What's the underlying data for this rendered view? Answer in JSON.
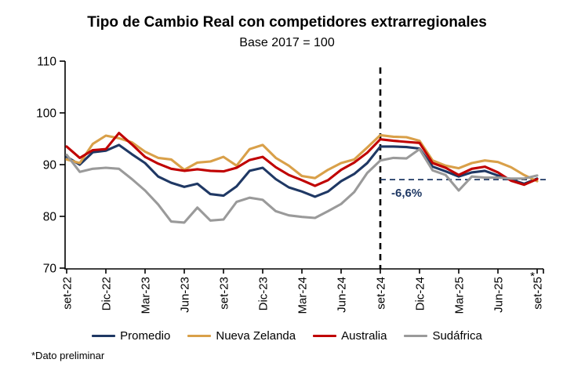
{
  "page": {
    "footnote": "*Dato preliminar"
  },
  "chart_data": {
    "type": "line",
    "title": "Tipo de Cambio Real con competidores extrarregionales",
    "subtitle": "Base 2017 = 100",
    "x_tick_labels": [
      "set-22",
      "Dic-22",
      "Mar-23",
      "Jun-23",
      "set-23",
      "Dic-23",
      "Mar-24",
      "Jun-24",
      "set-24",
      "Dic-24",
      "Mar-25",
      "Jun-25",
      "set-25"
    ],
    "x_frequency": "monthly",
    "n_points": 37,
    "axis_asterisk": "*",
    "ylim": [
      70,
      110
    ],
    "yticks": [
      110,
      100,
      90,
      80,
      70
    ],
    "grid": "off",
    "legend_position": "bottom",
    "series": [
      {
        "name": "Promedio",
        "color": "#1F3864",
        "values": [
          91.5,
          90.0,
          92.4,
          92.7,
          93.8,
          92.0,
          90.3,
          87.7,
          86.5,
          85.7,
          86.3,
          84.3,
          84.0,
          85.8,
          88.8,
          89.4,
          87.2,
          85.6,
          84.8,
          83.8,
          84.8,
          86.8,
          88.2,
          90.3,
          93.5,
          93.5,
          93.4,
          93.1,
          89.6,
          88.7,
          87.7,
          88.5,
          88.8,
          87.9,
          87.1,
          86.3,
          87.3
        ]
      },
      {
        "name": "Nueva Zelanda",
        "color": "#D9A049",
        "values": [
          91.0,
          90.3,
          94.0,
          95.6,
          95.1,
          94.3,
          92.5,
          91.3,
          91.0,
          89.0,
          90.4,
          90.6,
          91.5,
          89.8,
          93.0,
          93.8,
          91.3,
          89.8,
          87.8,
          87.4,
          89.0,
          90.3,
          91.0,
          93.3,
          95.7,
          95.4,
          95.3,
          94.6,
          90.8,
          89.8,
          89.3,
          90.3,
          90.8,
          90.5,
          89.5,
          88.0,
          86.8
        ]
      },
      {
        "name": "Australia",
        "color": "#C00000",
        "values": [
          93.5,
          91.3,
          92.8,
          93.0,
          96.1,
          93.9,
          91.5,
          90.2,
          89.2,
          88.8,
          89.1,
          88.8,
          88.7,
          89.4,
          90.9,
          91.5,
          89.5,
          88.0,
          87.0,
          85.9,
          87.0,
          89.0,
          90.4,
          92.3,
          94.9,
          94.6,
          94.4,
          94.2,
          90.3,
          89.4,
          88.0,
          89.2,
          89.6,
          88.5,
          86.9,
          86.1,
          87.2
        ]
      },
      {
        "name": "Sudáfrica",
        "color": "#9A9A9A",
        "values": [
          91.9,
          88.6,
          89.2,
          89.4,
          89.2,
          87.2,
          85.0,
          82.3,
          79.0,
          78.8,
          81.7,
          79.2,
          79.4,
          82.8,
          83.6,
          83.2,
          81.0,
          80.2,
          79.9,
          79.7,
          81.0,
          82.4,
          84.7,
          88.4,
          90.8,
          91.3,
          91.2,
          93.0,
          88.9,
          88.0,
          85.0,
          87.7,
          87.5,
          87.5,
          87.3,
          87.3,
          87.9
        ]
      }
    ],
    "annotation": {
      "label": "-6,6%",
      "label_color": "#1F3864",
      "vline_at_label": "set-24",
      "vline_point_index": 24,
      "hline_value": 87.1,
      "hline_color": "#1F3864",
      "vline_color": "#000000"
    }
  }
}
